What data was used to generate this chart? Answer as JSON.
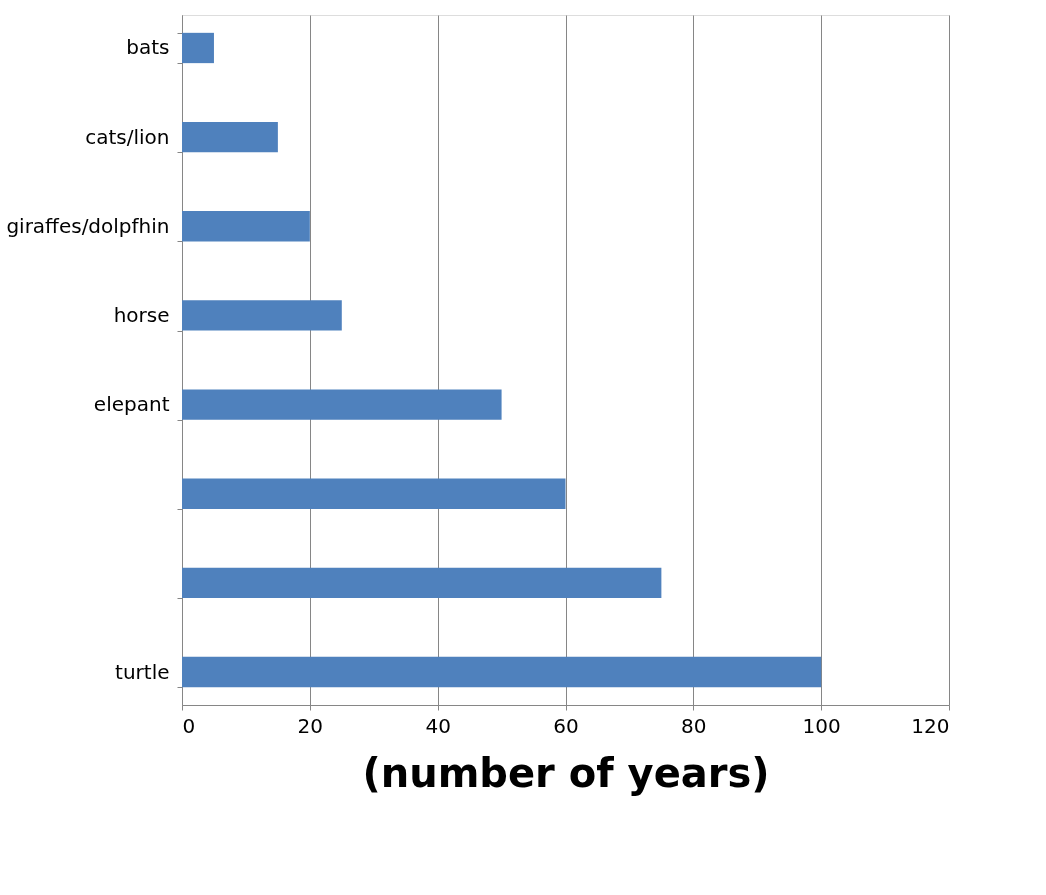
{
  "chart_data": {
    "type": "bar",
    "orientation": "horizontal",
    "xlabel": "(number of years)",
    "categories": [
      "bats",
      "cats/lion",
      "giraffes/dolpfhin",
      "horse",
      "elepant",
      null,
      null,
      "turtle"
    ],
    "values": [
      5,
      15,
      20,
      25,
      50,
      60,
      75,
      100
    ],
    "color": "#4f81bd",
    "xlim": [
      0,
      120
    ],
    "xticks": [
      0,
      20,
      40,
      60,
      80,
      100,
      120
    ],
    "grid": "x"
  }
}
